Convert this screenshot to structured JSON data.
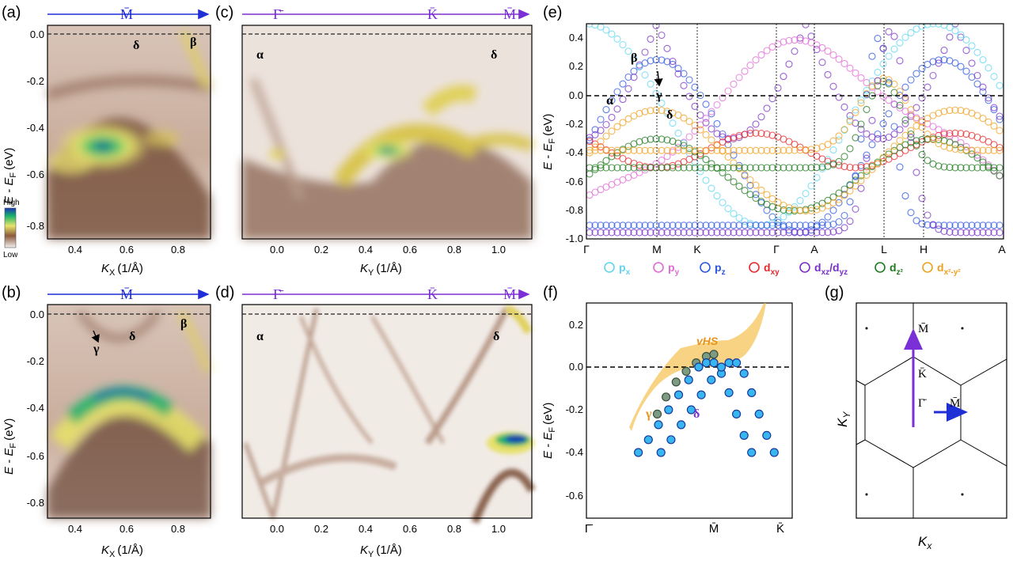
{
  "panels": {
    "a": {
      "label": "(a)",
      "path": {
        "points": [
          "M̄"
        ],
        "color": "#1f2fd6"
      },
      "xlabel_main": "K",
      "xlabel_sub": "X",
      "xlabel_unit": "(1/Å)",
      "ylabel": "E - E",
      "ylabel_sub": "F",
      "ylabel_unit": "(eV)",
      "xticks": [
        "0.4",
        "0.6",
        "0.8"
      ],
      "yticks": [
        "0.0",
        "-0.2",
        "-0.4",
        "-0.6",
        "-0.8"
      ],
      "bands": [
        "δ",
        "β"
      ],
      "colorbar": {
        "high": "High",
        "low": "Low"
      }
    },
    "b": {
      "label": "(b)",
      "path": {
        "points": [
          "M̄"
        ],
        "color": "#1f2fd6"
      },
      "xlabel_main": "K",
      "xlabel_sub": "X",
      "xlabel_unit": "(1/Å)",
      "ylabel": "E - E",
      "ylabel_sub": "F",
      "ylabel_unit": "(eV)",
      "xticks": [
        "0.4",
        "0.6",
        "0.8"
      ],
      "yticks": [
        "0.0",
        "-0.2",
        "-0.4",
        "-0.6",
        "-0.8"
      ],
      "bands": [
        "γ",
        "δ",
        "β"
      ]
    },
    "c": {
      "label": "(c)",
      "path": {
        "points": [
          "Γ̄",
          "K̄",
          "M̄"
        ],
        "color": "#7b2fd6"
      },
      "xlabel_main": "K",
      "xlabel_sub": "Y",
      "xlabel_unit": "(1/Å)",
      "xticks": [
        "0.0",
        "0.2",
        "0.4",
        "0.6",
        "0.8",
        "1.0"
      ],
      "bands": [
        "α",
        "δ"
      ]
    },
    "d": {
      "label": "(d)",
      "path": {
        "points": [
          "Γ̄",
          "K̄",
          "M̄"
        ],
        "color": "#7b2fd6"
      },
      "xlabel_main": "K",
      "xlabel_sub": "Y",
      "xlabel_unit": "(1/Å)",
      "xticks": [
        "0.0",
        "0.2",
        "0.4",
        "0.6",
        "0.8",
        "1.0"
      ],
      "bands": [
        "α",
        "δ"
      ]
    },
    "e": {
      "label": "(e)",
      "ylabel": "E - E",
      "ylabel_sub": "F",
      "ylabel_unit": "(eV)",
      "yticks": [
        "0.4",
        "0.2",
        "0.0",
        "-0.2",
        "-0.4",
        "-0.6",
        "-0.8",
        "-1.0"
      ],
      "kpoints": [
        "Γ",
        "M",
        "K",
        "Γ",
        "A",
        "L",
        "H",
        "A"
      ],
      "bands": [
        "β",
        "γ",
        "α",
        "δ"
      ],
      "legend": [
        {
          "name": "p",
          "sub": "x",
          "color": "#5fd6f0"
        },
        {
          "name": "p",
          "sub": "y",
          "color": "#e06ad6"
        },
        {
          "name": "p",
          "sub": "z",
          "color": "#2a56e0"
        },
        {
          "name": "d",
          "sub": "xy",
          "color": "#e8282a"
        },
        {
          "name": "d",
          "sub": "xz",
          "extra": "/d",
          "sub2": "yz",
          "color": "#7a2fc8"
        },
        {
          "name": "d",
          "sub": "z²",
          "color": "#1e7a1e"
        },
        {
          "name": "d",
          "sub": "x²-y²",
          "color": "#f0a020"
        }
      ]
    },
    "f": {
      "label": "(f)",
      "ylabel": "E - E",
      "ylabel_sub": "F",
      "ylabel_unit": "(eV)",
      "yticks": [
        "0.2",
        "0.0",
        "-0.2",
        "-0.4",
        "-0.6"
      ],
      "xticks": [
        "Γ̄",
        "M̄",
        "K̄"
      ],
      "annotations": [
        "vHS",
        "γ",
        "δ"
      ]
    },
    "g": {
      "label": "(g)",
      "xlabel_main": "K",
      "xlabel_sub": "x",
      "ylabel_main": "K",
      "ylabel_sub": "Y",
      "points": [
        "M̄",
        "K̄",
        "Γ̄",
        "M̄"
      ]
    }
  },
  "chart_data": [
    {
      "panel": "a",
      "type": "heatmap",
      "title": "",
      "x_range": [
        0.3,
        0.93
      ],
      "y_range": [
        -0.88,
        0.03
      ],
      "xlabel": "K_X (1/Å)",
      "ylabel": "E - E_F (eV)",
      "fermi_level": 0.0
    },
    {
      "panel": "b",
      "type": "heatmap",
      "title": "",
      "x_range": [
        0.3,
        0.93
      ],
      "y_range": [
        -0.88,
        0.03
      ],
      "xlabel": "K_X (1/Å)",
      "ylabel": "E - E_F (eV)",
      "fermi_level": 0.0
    },
    {
      "panel": "c",
      "type": "heatmap",
      "title": "",
      "x_range": [
        -0.15,
        1.16
      ],
      "y_range": [
        -0.88,
        0.03
      ],
      "xlabel": "K_Y (1/Å)",
      "fermi_level": 0.0
    },
    {
      "panel": "d",
      "type": "heatmap",
      "title": "",
      "x_range": [
        -0.15,
        1.16
      ],
      "y_range": [
        -0.88,
        0.03
      ],
      "xlabel": "K_Y (1/Å)",
      "fermi_level": 0.0
    },
    {
      "panel": "e",
      "type": "scatter",
      "title": "",
      "ylim": [
        -1.0,
        0.5
      ],
      "ylabel": "E - E_F (eV)",
      "kpoints": [
        "Γ",
        "M",
        "K",
        "Γ",
        "A",
        "L",
        "H",
        "A"
      ]
    },
    {
      "panel": "f",
      "type": "scatter",
      "title": "",
      "ylim": [
        -0.7,
        0.3
      ],
      "ylabel": "E - E_F (eV)",
      "xticks": [
        "Γ̄",
        "M̄",
        "K̄"
      ],
      "series": [
        {
          "name": "γ",
          "x": [
            0.55,
            0.62,
            0.7,
            0.78,
            0.86,
            0.94,
            1.0
          ],
          "y": [
            -0.22,
            -0.14,
            -0.07,
            -0.02,
            0.02,
            0.05,
            0.06
          ]
        },
        {
          "name": "δ",
          "x": [
            0.4,
            0.48,
            0.56,
            0.64,
            0.72,
            0.8,
            0.88,
            0.94,
            1.0,
            1.06,
            1.12,
            1.18,
            1.24,
            1.3
          ],
          "y": [
            -0.4,
            -0.34,
            -0.27,
            -0.2,
            -0.13,
            -0.06,
            0.0,
            0.02,
            0.02,
            -0.03,
            -0.12,
            -0.22,
            -0.32,
            -0.4
          ]
        }
      ]
    }
  ]
}
